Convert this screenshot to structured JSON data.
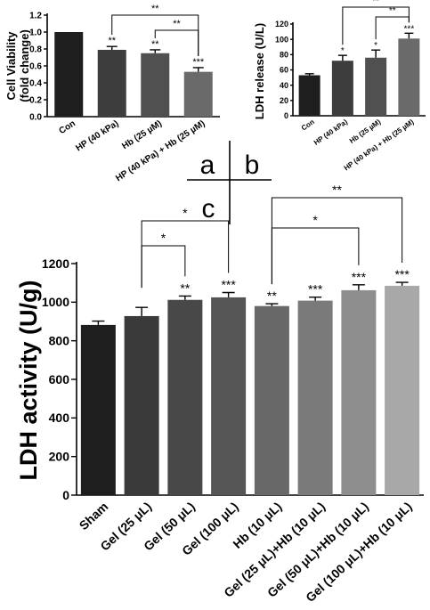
{
  "panel_labels": {
    "a": "a",
    "b": "b",
    "c": "c"
  },
  "chart_data": [
    {
      "panel": "a",
      "type": "bar",
      "ylabel_line1": "Cell Viability",
      "ylabel_line2": "(fold change)",
      "categories": [
        "Con",
        "HP (40 kPa)",
        "Hb (25 µM)",
        "HP (40 kPa) + Hb (25 µM)"
      ],
      "values": [
        1.0,
        0.79,
        0.75,
        0.53
      ],
      "errors": [
        0.0,
        0.04,
        0.04,
        0.05
      ],
      "sig": [
        "",
        "**",
        "**",
        "***"
      ],
      "ylim": [
        0,
        1.2
      ],
      "yticks": [
        "0.0",
        "0.2",
        "0.4",
        "0.6",
        "0.8",
        "1.0",
        "1.2"
      ],
      "bar_colors": [
        "#1e1e1e",
        "#3d3d3d",
        "#505050",
        "#6a6a6a"
      ],
      "brackets": [
        {
          "from": 1,
          "to": 3,
          "label": "**"
        },
        {
          "from": 2,
          "to": 3,
          "label": "**"
        }
      ]
    },
    {
      "panel": "b",
      "type": "bar",
      "ylabel": "LDH release (U/L)",
      "categories": [
        "Con",
        "HP (40 kPa)",
        "Hb (25 µM)",
        "HP (40 kPa) + Hb (25 µM)"
      ],
      "values": [
        53,
        72,
        76,
        101
      ],
      "errors": [
        2,
        7,
        10,
        7
      ],
      "sig": [
        "",
        "*",
        "*",
        "***"
      ],
      "ylim": [
        0,
        120
      ],
      "yticks": [
        "0",
        "20",
        "40",
        "60",
        "80",
        "100",
        "120"
      ],
      "bar_colors": [
        "#1e1e1e",
        "#3d3d3d",
        "#505050",
        "#6a6a6a"
      ],
      "brackets": [
        {
          "from": 1,
          "to": 3,
          "label": "**"
        },
        {
          "from": 2,
          "to": 3,
          "label": "**"
        }
      ]
    },
    {
      "panel": "c",
      "type": "bar",
      "ylabel": "LDH activity (U/g)",
      "categories": [
        "Sham",
        "Gel (25 μL)",
        "Gel (50 μL)",
        "Gel (100 μL)",
        "Hb (10 μL)",
        "Gel (25 μL)+Hb (10 μL)",
        "Gel (50 μL)+Hb (10 μL)",
        "Gel (100 μL)+Hb (10 μL)"
      ],
      "values": [
        882,
        928,
        1012,
        1025,
        980,
        1008,
        1062,
        1085
      ],
      "errors": [
        20,
        45,
        20,
        25,
        12,
        18,
        28,
        18
      ],
      "sig": [
        "",
        "",
        "**",
        "***",
        "**",
        "***",
        "***",
        "***"
      ],
      "ylim": [
        0,
        1200
      ],
      "yticks": [
        "0",
        "200",
        "400",
        "600",
        "800",
        "1000",
        "1200"
      ],
      "bar_colors": [
        "#1e1e1e",
        "#3a3a3a",
        "#484848",
        "#555555",
        "#686868",
        "#7a7a7a",
        "#8e8e8e",
        "#a8a8a8"
      ],
      "brackets": [
        {
          "from": 1,
          "to": 2,
          "label": "*"
        },
        {
          "from": 1,
          "to": 3,
          "label": "*"
        },
        {
          "from": 4,
          "to": 6,
          "label": "*"
        },
        {
          "from": 4,
          "to": 7,
          "label": "**"
        }
      ]
    }
  ]
}
